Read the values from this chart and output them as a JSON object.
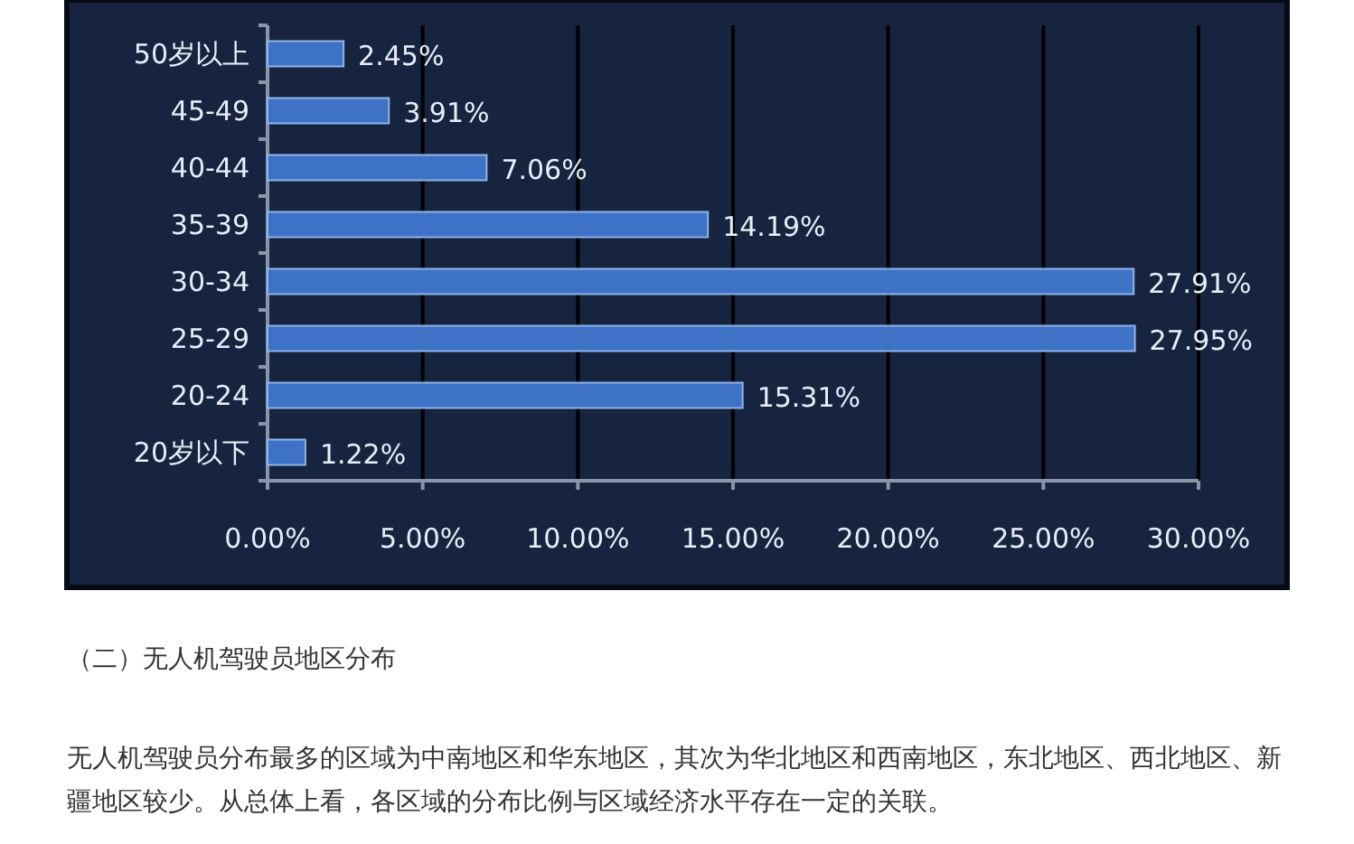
{
  "chart_data": {
    "type": "bar",
    "orientation": "horizontal",
    "categories": [
      "50岁以上",
      "45-49",
      "40-44",
      "35-39",
      "30-34",
      "25-29",
      "20-24",
      "20岁以下"
    ],
    "values": [
      2.45,
      3.91,
      7.06,
      14.19,
      27.91,
      27.95,
      15.31,
      1.22
    ],
    "value_labels": [
      "2.45%",
      "3.91%",
      "7.06%",
      "14.19%",
      "27.91%",
      "27.95%",
      "15.31%",
      "1.22%"
    ],
    "color": "#3d72c6",
    "xlim": [
      0,
      30
    ],
    "xticks": [
      {
        "value": 0,
        "label": "0.00%"
      },
      {
        "value": 5,
        "label": "5.00%"
      },
      {
        "value": 10,
        "label": "10.00%"
      },
      {
        "value": 15,
        "label": "15.00%"
      },
      {
        "value": 20,
        "label": "20.00%"
      },
      {
        "value": 25,
        "label": "25.00%"
      },
      {
        "value": 30,
        "label": "30.00%"
      }
    ],
    "grid": "x",
    "annotations": [
      "（二）无人机驾驶员地区分布",
      "无人机驾驶员分布最多的区域为中南地区和华东地区，其次为华北地区和西南地区，东北地区、西北地区、新疆地区较少。从总体上看，各区域的分布比例与区域经济水平存在一定的关联。"
    ]
  }
}
